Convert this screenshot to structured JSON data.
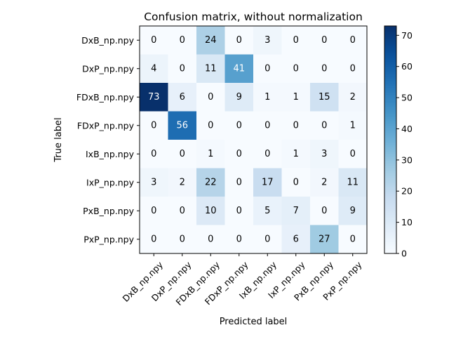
{
  "chart_data": {
    "type": "heatmap",
    "title": "Confusion matrix, without normalization",
    "xlabel": "Predicted label",
    "ylabel": "True label",
    "x_categories": [
      "DxB_np.npy",
      "DxP_np.npy",
      "FDxB_np.npy",
      "FDxP_np.npy",
      "IxB_np.npy",
      "IxP_np.npy",
      "PxB_np.npy",
      "PxP_np.npy"
    ],
    "y_categories": [
      "DxB_np.npy",
      "DxP_np.npy",
      "FDxB_np.npy",
      "FDxP_np.npy",
      "IxB_np.npy",
      "IxP_np.npy",
      "PxB_np.npy",
      "PxP_np.npy"
    ],
    "values": [
      [
        0,
        0,
        24,
        0,
        3,
        0,
        0,
        0
      ],
      [
        4,
        0,
        11,
        41,
        0,
        0,
        0,
        0
      ],
      [
        73,
        6,
        0,
        9,
        1,
        1,
        15,
        2
      ],
      [
        0,
        56,
        0,
        0,
        0,
        0,
        0,
        1
      ],
      [
        0,
        0,
        1,
        0,
        0,
        1,
        3,
        0
      ],
      [
        3,
        2,
        22,
        0,
        17,
        0,
        2,
        11
      ],
      [
        0,
        0,
        10,
        0,
        5,
        7,
        0,
        9
      ],
      [
        0,
        0,
        0,
        0,
        0,
        6,
        27,
        0
      ]
    ],
    "colormap": "Blues",
    "colorbar": {
      "min": 0,
      "max": 73,
      "ticks": [
        0,
        10,
        20,
        30,
        40,
        50,
        60,
        70
      ]
    },
    "x_tick_rotation_deg": 45,
    "grid": false
  }
}
